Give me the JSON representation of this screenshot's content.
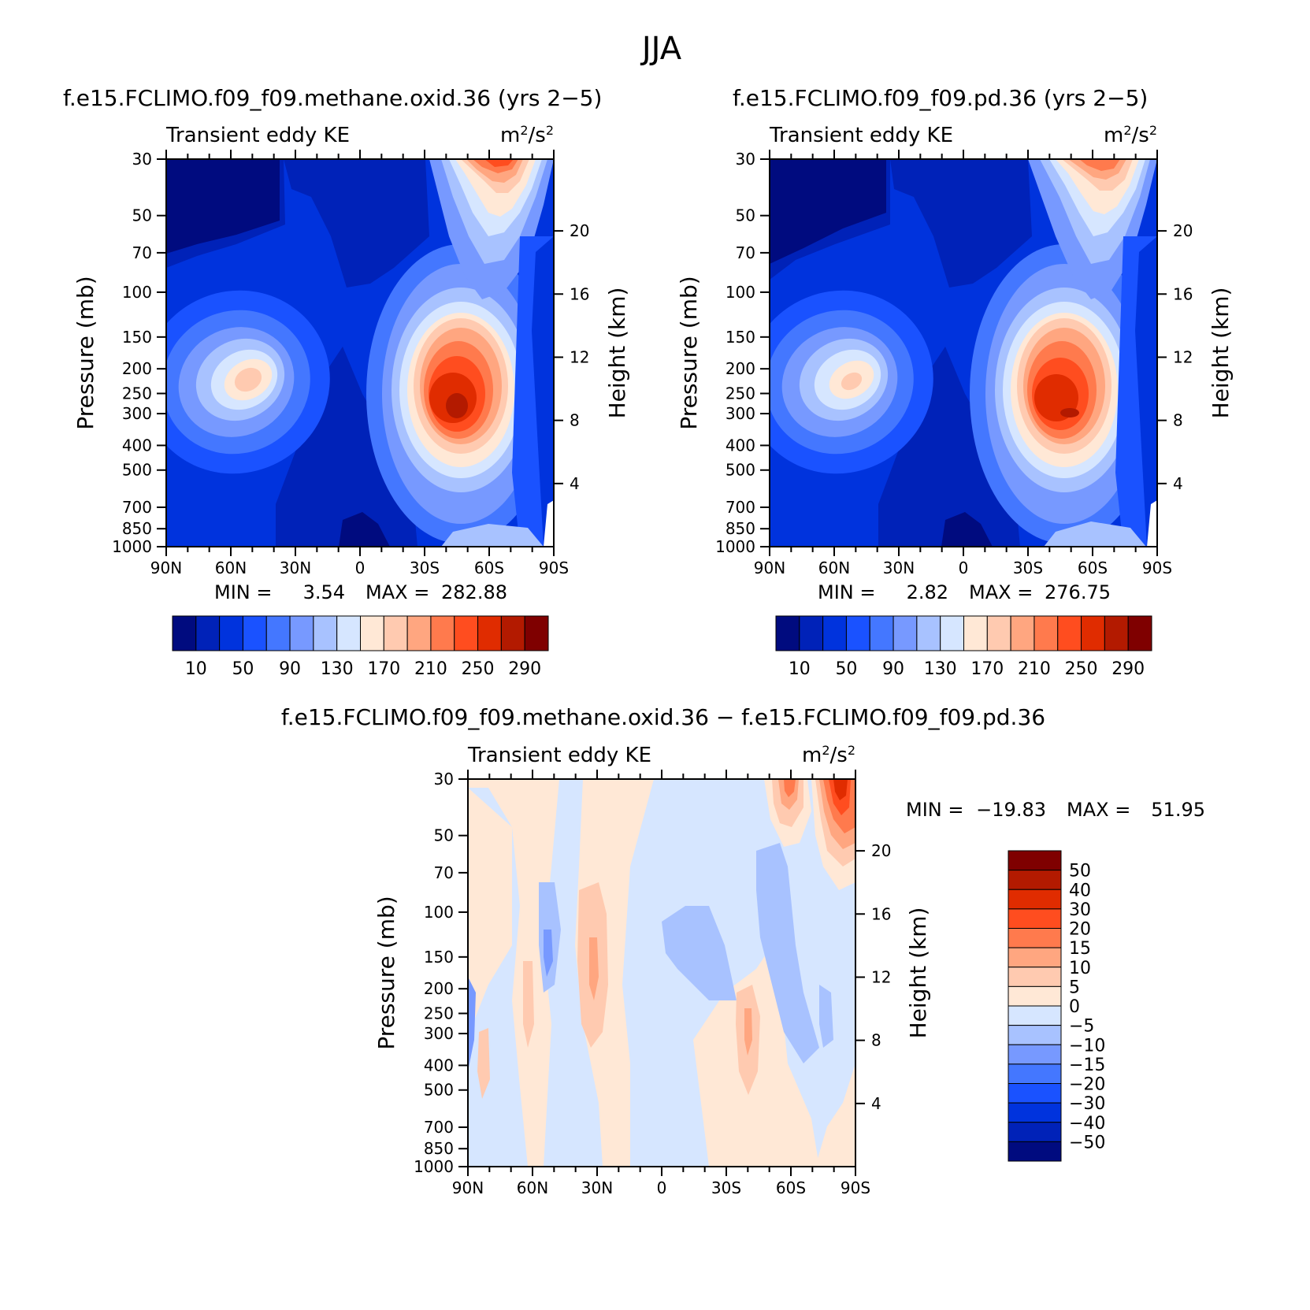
{
  "figure_title": "JJA",
  "panels": [
    {
      "title": "f.e15.FCLIMO.f09_f09.methane.oxid.36 (yrs 2−5)",
      "variable": "Transient eddy KE",
      "units_base": "m",
      "units_sup1": "2",
      "units_mid": "/s",
      "units_sup2": "2",
      "left_axis_label": "Pressure (mb)",
      "right_axis_label": "Height (km)",
      "min_label": "MIN =",
      "min_value": "3.54",
      "max_label": "MAX =",
      "max_value": "282.88"
    },
    {
      "title": "f.e15.FCLIMO.f09_f09.pd.36 (yrs 2−5)",
      "variable": "Transient eddy KE",
      "units_base": "m",
      "units_sup1": "2",
      "units_mid": "/s",
      "units_sup2": "2",
      "left_axis_label": "Pressure (mb)",
      "right_axis_label": "Height (km)",
      "min_label": "MIN =",
      "min_value": "2.82",
      "max_label": "MAX =",
      "max_value": "276.75"
    },
    {
      "title": "f.e15.FCLIMO.f09_f09.methane.oxid.36 − f.e15.FCLIMO.f09_f09.pd.36",
      "variable": "Transient eddy KE",
      "units_base": "m",
      "units_sup1": "2",
      "units_mid": "/s",
      "units_sup2": "2",
      "left_axis_label": "Pressure (mb)",
      "right_axis_label": "Height (km)",
      "min_label": "MIN =",
      "min_value": "−19.83",
      "max_label": "MAX =",
      "max_value": "51.95"
    }
  ],
  "chart_data": [
    {
      "type": "heatmap",
      "title": "f.e15.FCLIMO.f09_f09.methane.oxid.36 (yrs 2−5)",
      "xlabel": "",
      "ylabel": "Pressure (mb)",
      "y2label": "Height (km)",
      "x_ticks": [
        "90N",
        "60N",
        "30N",
        "0",
        "30S",
        "60S",
        "90S"
      ],
      "x_tick_values": [
        90,
        60,
        30,
        0,
        -30,
        -60,
        -90
      ],
      "y_ticks": [
        "30",
        "50",
        "70",
        "100",
        "150",
        "200",
        "250",
        "300",
        "400",
        "500",
        "700",
        "850",
        "1000"
      ],
      "y_tick_values": [
        30,
        50,
        70,
        100,
        150,
        200,
        250,
        300,
        400,
        500,
        700,
        850,
        1000
      ],
      "y2_ticks": [
        "20",
        "16",
        "12",
        "8",
        "4"
      ],
      "y2_tick_values": [
        20,
        16,
        12,
        8,
        4
      ],
      "min": 3.54,
      "max": 282.88,
      "colorbar_labels": [
        "10",
        "50",
        "90",
        "130",
        "170",
        "210",
        "250",
        "290"
      ],
      "colorbar_levels": [
        10,
        30,
        50,
        70,
        90,
        110,
        130,
        150,
        170,
        190,
        210,
        230,
        250,
        270,
        290
      ],
      "features": [
        {
          "lat": 45,
          "p": 270,
          "value": 185
        },
        {
          "lat": -45,
          "p": 290,
          "value": 282
        },
        {
          "lat": -62,
          "p": 30,
          "value": 245
        },
        {
          "lat": 5,
          "p": 850,
          "value": 5
        },
        {
          "lat": 75,
          "p": 40,
          "value": 8
        }
      ]
    },
    {
      "type": "heatmap",
      "title": "f.e15.FCLIMO.f09_f09.pd.36 (yrs 2−5)",
      "xlabel": "",
      "ylabel": "Pressure (mb)",
      "y2label": "Height (km)",
      "x_ticks": [
        "90N",
        "60N",
        "30N",
        "0",
        "30S",
        "60S",
        "90S"
      ],
      "x_tick_values": [
        90,
        60,
        30,
        0,
        -30,
        -60,
        -90
      ],
      "y_ticks": [
        "30",
        "50",
        "70",
        "100",
        "150",
        "200",
        "250",
        "300",
        "400",
        "500",
        "700",
        "850",
        "1000"
      ],
      "y_tick_values": [
        30,
        50,
        70,
        100,
        150,
        200,
        250,
        300,
        400,
        500,
        700,
        850,
        1000
      ],
      "y2_ticks": [
        "20",
        "16",
        "12",
        "8",
        "4"
      ],
      "y2_tick_values": [
        20,
        16,
        12,
        8,
        4
      ],
      "min": 2.82,
      "max": 276.75,
      "colorbar_labels": [
        "10",
        "50",
        "90",
        "130",
        "170",
        "210",
        "250",
        "290"
      ],
      "colorbar_levels": [
        10,
        30,
        50,
        70,
        90,
        110,
        130,
        150,
        170,
        190,
        210,
        230,
        250,
        270,
        290
      ],
      "features": [
        {
          "lat": 45,
          "p": 260,
          "value": 175
        },
        {
          "lat": -45,
          "p": 290,
          "value": 276
        },
        {
          "lat": -65,
          "p": 30,
          "value": 230
        },
        {
          "lat": 5,
          "p": 850,
          "value": 4
        },
        {
          "lat": 75,
          "p": 40,
          "value": 7
        }
      ]
    },
    {
      "type": "heatmap",
      "title": "f.e15.FCLIMO.f09_f09.methane.oxid.36 − f.e15.FCLIMO.f09_f09.pd.36",
      "xlabel": "",
      "ylabel": "Pressure (mb)",
      "y2label": "Height (km)",
      "x_ticks": [
        "90N",
        "60N",
        "30N",
        "0",
        "30S",
        "60S",
        "90S"
      ],
      "x_tick_values": [
        90,
        60,
        30,
        0,
        -30,
        -60,
        -90
      ],
      "y_ticks": [
        "30",
        "50",
        "70",
        "100",
        "150",
        "200",
        "250",
        "300",
        "400",
        "500",
        "700",
        "850",
        "1000"
      ],
      "y_tick_values": [
        30,
        50,
        70,
        100,
        150,
        200,
        250,
        300,
        400,
        500,
        700,
        850,
        1000
      ],
      "y2_ticks": [
        "20",
        "16",
        "12",
        "8",
        "4"
      ],
      "y2_tick_values": [
        20,
        16,
        12,
        8,
        4
      ],
      "min": -19.83,
      "max": 51.95,
      "colorbar_labels": [
        "50",
        "40",
        "30",
        "20",
        "15",
        "10",
        "5",
        "0",
        "−5",
        "−10",
        "−15",
        "−20",
        "−30",
        "−40",
        "−50"
      ],
      "colorbar_levels": [
        50,
        40,
        30,
        20,
        15,
        10,
        5,
        0,
        -5,
        -10,
        -15,
        -20,
        -30,
        -40,
        -50
      ],
      "features": [
        {
          "lat": -82,
          "p": 40,
          "value": 45
        },
        {
          "lat": -60,
          "p": 35,
          "value": 30
        },
        {
          "lat": 27,
          "p": 200,
          "value": 15
        },
        {
          "lat": 53,
          "p": 230,
          "value": -18
        },
        {
          "lat": -38,
          "p": 300,
          "value": 12
        }
      ]
    }
  ],
  "colors": {
    "ke_scale": [
      "#000b7f",
      "#0022b8",
      "#0033dd",
      "#1a52ff",
      "#4477ff",
      "#7799ff",
      "#a8c2ff",
      "#d6e6ff",
      "#ffe8d6",
      "#ffcab0",
      "#ffa680",
      "#ff7a4d",
      "#ff4d1f",
      "#e02c00",
      "#b31a00",
      "#7f0000"
    ],
    "diff_scale_top_to_bottom": [
      "#7f0000",
      "#b31a00",
      "#e02c00",
      "#ff4d1f",
      "#ff7a4d",
      "#ffa680",
      "#ffcab0",
      "#ffe8d6",
      "#d6e6ff",
      "#a8c2ff",
      "#7799ff",
      "#4477ff",
      "#1a52ff",
      "#0033dd",
      "#0022b8",
      "#000b7f"
    ]
  }
}
